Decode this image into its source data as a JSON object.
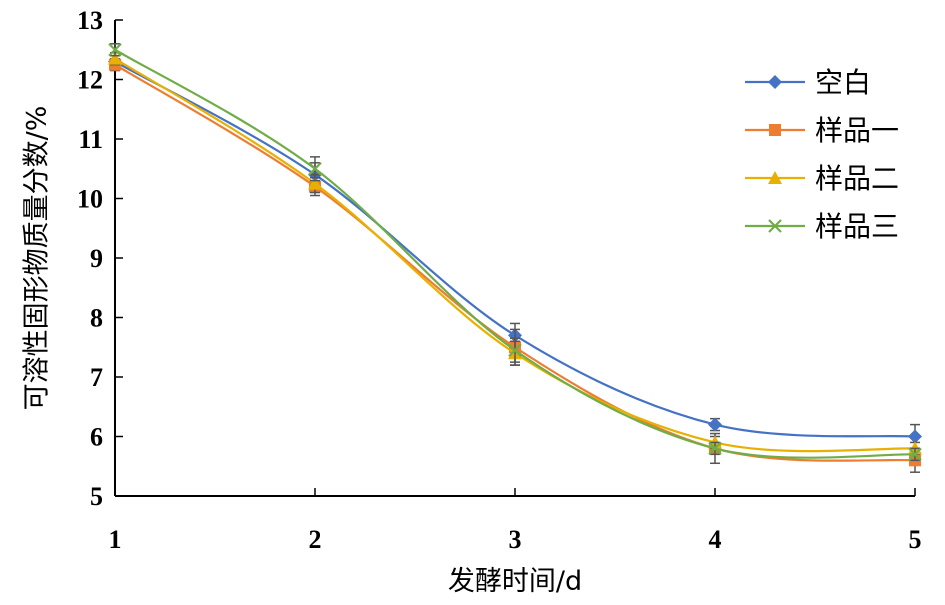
{
  "chart_data": {
    "type": "line",
    "xlabel": "发酵时间/d",
    "ylabel": "可溶性固形物质量分数/%",
    "x": [
      1,
      2,
      3,
      4,
      5
    ],
    "xlim": [
      1,
      5
    ],
    "ylim": [
      5,
      13
    ],
    "xticks": [
      "1",
      "2",
      "3",
      "4",
      "5"
    ],
    "yticks": [
      "5",
      "6",
      "7",
      "8",
      "9",
      "10",
      "11",
      "12",
      "13"
    ],
    "grid": false,
    "legend_position": "top-right",
    "series": [
      {
        "name": "空白",
        "color": "#4472C4",
        "marker": "diamond",
        "values": [
          12.3,
          10.4,
          7.7,
          6.2,
          6.0
        ],
        "errors": [
          0.1,
          0.2,
          0.2,
          0.1,
          0.2
        ]
      },
      {
        "name": "样品一",
        "color": "#ED7D31",
        "marker": "square",
        "values": [
          12.25,
          10.2,
          7.5,
          5.8,
          5.6
        ],
        "errors": [
          0.1,
          0.15,
          0.3,
          0.25,
          0.2
        ]
      },
      {
        "name": "样品二",
        "color": "#E8B000",
        "marker": "triangle",
        "values": [
          12.35,
          10.25,
          7.4,
          5.9,
          5.8
        ],
        "errors": [
          0.1,
          0.15,
          0.2,
          0.1,
          0.1
        ]
      },
      {
        "name": "样品三",
        "color": "#70AD47",
        "marker": "x",
        "values": [
          12.5,
          10.5,
          7.45,
          5.8,
          5.7
        ],
        "errors": [
          0.1,
          0.2,
          0.2,
          0.1,
          0.1
        ]
      }
    ]
  }
}
